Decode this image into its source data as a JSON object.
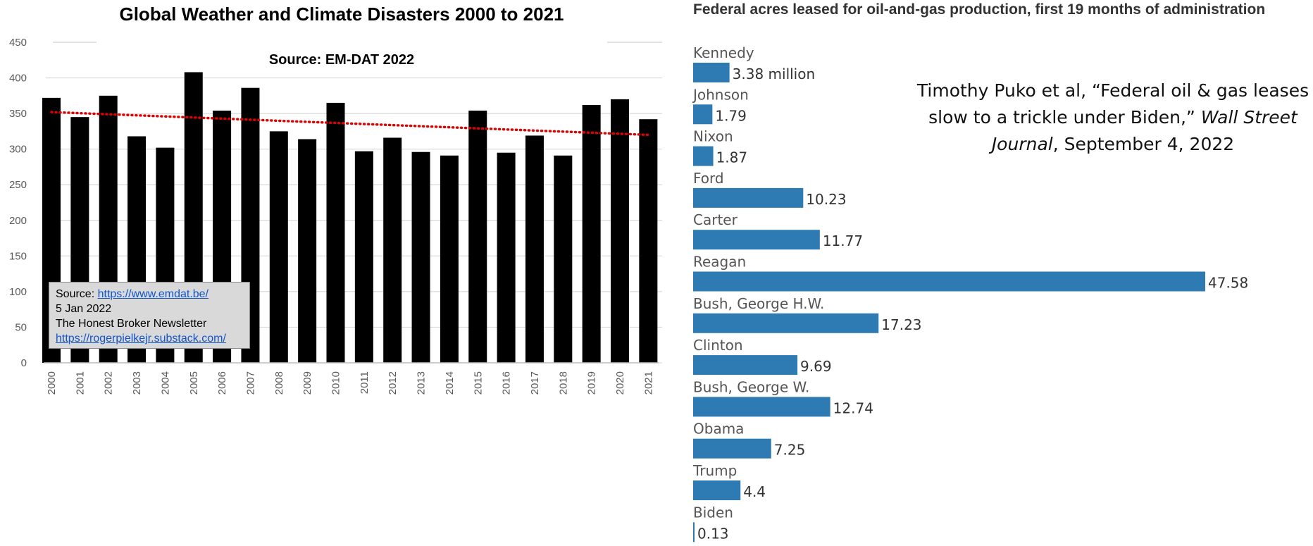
{
  "left_panel": {
    "title": "Global Weather and Climate Disasters 2000 to 2021",
    "subtitle": "Source: EM-DAT 2022",
    "source_box": {
      "line1_prefix": "Source: ",
      "line1_link": "https://www.emdat.be/",
      "line2": "5 Jan 2022",
      "line3": "The Honest Broker Newsletter",
      "line4_link": "https://rogerpielkejr.substack.com/"
    }
  },
  "right_panel": {
    "title": "Federal acres leased for oil-and-gas production, first 19 months of administration",
    "citation": {
      "prefix": "Timothy Puko et al, “Federal oil & gas leases slow to a trickle under Biden,” ",
      "italic": "Wall Street Journal",
      "suffix": ", September 4, 2022"
    }
  },
  "chart_data": [
    {
      "type": "bar",
      "title": "Global Weather and Climate Disasters 2000 to 2021",
      "subtitle": "Source: EM-DAT 2022",
      "categories": [
        "2000",
        "2001",
        "2002",
        "2003",
        "2004",
        "2005",
        "2006",
        "2007",
        "2008",
        "2009",
        "2010",
        "2011",
        "2012",
        "2013",
        "2014",
        "2015",
        "2016",
        "2017",
        "2018",
        "2019",
        "2020",
        "2021"
      ],
      "values": [
        372,
        345,
        375,
        318,
        302,
        408,
        354,
        386,
        325,
        314,
        365,
        297,
        316,
        296,
        291,
        354,
        295,
        319,
        291,
        362,
        370,
        342
      ],
      "trendline": {
        "style": "dotted",
        "start": 352,
        "end": 320
      },
      "ylim": [
        0,
        450
      ],
      "yticks": [
        0,
        50,
        100,
        150,
        200,
        250,
        300,
        350,
        400,
        450
      ],
      "grid": true,
      "colors": {
        "bar": "#000000",
        "trend": "#e00000",
        "grid": "#d9d9d9"
      }
    },
    {
      "type": "bar",
      "orientation": "horizontal",
      "title": "Federal acres leased for oil-and-gas production, first 19 months of administration",
      "categories": [
        "Kennedy",
        "Johnson",
        "Nixon",
        "Ford",
        "Carter",
        "Reagan",
        "Bush, George H.W.",
        "Clinton",
        "Bush, George W.",
        "Obama",
        "Trump",
        "Biden"
      ],
      "values": [
        3.38,
        1.79,
        1.87,
        10.23,
        11.77,
        47.58,
        17.23,
        9.69,
        12.74,
        7.25,
        4.4,
        0.13
      ],
      "value_labels": [
        "3.38 million",
        "1.79",
        "1.87",
        "10.23",
        "11.77",
        "47.58",
        "17.23",
        "9.69",
        "12.74",
        "7.25",
        "4.4",
        "0.13"
      ],
      "xlim": [
        0,
        47.58
      ],
      "colors": {
        "bar": "#2e7bb4",
        "label": "#333333"
      }
    }
  ]
}
